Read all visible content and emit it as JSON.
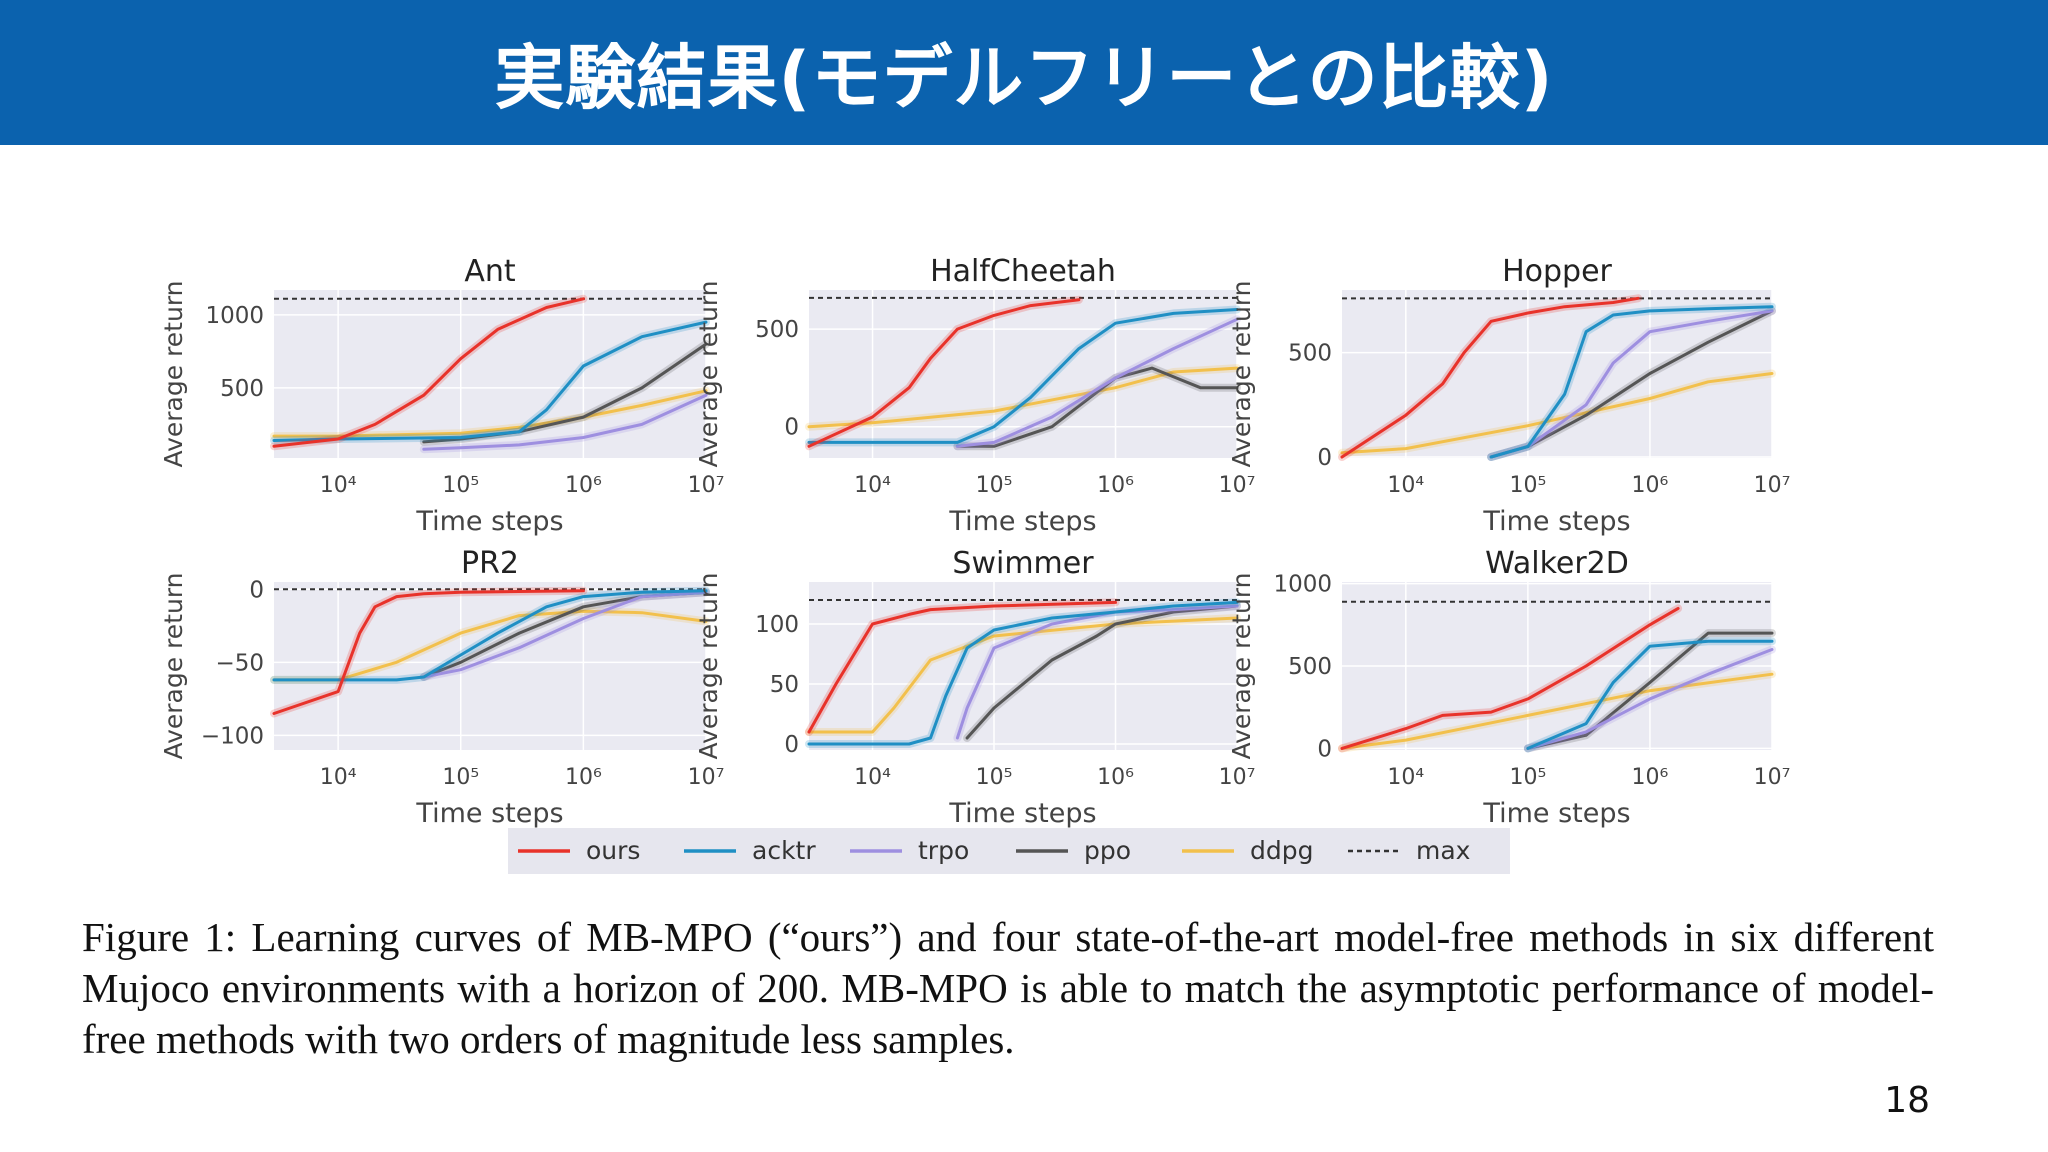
{
  "slide": {
    "title": "実験結果(モデルフリーとの比較)",
    "caption": "Figure 1: Learning curves of MB-MPO (“ours”) and four state-of-the-art model-free methods in six different Mujoco environments with a horizon of 200. MB-MPO is able to match the asymptotic performance of model-free methods with two orders of magnitude less samples.",
    "page_number": "18"
  },
  "colors": {
    "header": "#0b62ae",
    "plot_bg": "#eaeaf2",
    "grid": "#ffffff",
    "ours": "#e8322a",
    "acktr": "#1f8fc4",
    "trpo": "#9e8fe0",
    "ppo": "#555555",
    "ddpg": "#f2c04c",
    "max": "#333333"
  },
  "chart_data": [
    {
      "type": "line",
      "title": "Ant",
      "xlabel": "Time steps",
      "ylabel": "Average return",
      "xscale": "log",
      "xlim": [
        3000,
        10000000
      ],
      "ylim": [
        20,
        1170
      ],
      "xticks": [
        10000,
        100000,
        1000000,
        10000000
      ],
      "yticks": [
        500,
        1000
      ],
      "yticklabels": [
        "500",
        "1000"
      ],
      "max": 1110,
      "series": [
        {
          "name": "ours",
          "x": [
            3000,
            10000,
            20000,
            50000,
            100000,
            200000,
            500000,
            1000000
          ],
          "y": [
            100,
            150,
            250,
            450,
            700,
            900,
            1050,
            1110
          ]
        },
        {
          "name": "acktr",
          "x": [
            3000,
            10000,
            100000,
            300000,
            500000,
            1000000,
            3000000,
            10000000
          ],
          "y": [
            140,
            150,
            160,
            200,
            350,
            650,
            850,
            950
          ]
        },
        {
          "name": "trpo",
          "x": [
            50000,
            100000,
            300000,
            1000000,
            3000000,
            10000000
          ],
          "y": [
            80,
            90,
            110,
            160,
            250,
            450
          ]
        },
        {
          "name": "ppo",
          "x": [
            50000,
            100000,
            300000,
            1000000,
            3000000,
            10000000
          ],
          "y": [
            130,
            150,
            200,
            300,
            500,
            800
          ]
        },
        {
          "name": "ddpg",
          "x": [
            3000,
            10000,
            100000,
            300000,
            1000000,
            3000000,
            10000000
          ],
          "y": [
            170,
            170,
            190,
            230,
            300,
            380,
            480
          ]
        }
      ]
    },
    {
      "type": "line",
      "title": "HalfCheetah",
      "xlabel": "Time steps",
      "ylabel": "Average return",
      "xscale": "log",
      "xlim": [
        3000,
        10000000
      ],
      "ylim": [
        -160,
        700
      ],
      "xticks": [
        10000,
        100000,
        1000000,
        10000000
      ],
      "yticks": [
        0,
        500
      ],
      "yticklabels": [
        "0",
        "500"
      ],
      "max": 660,
      "series": [
        {
          "name": "ours",
          "x": [
            3000,
            10000,
            20000,
            30000,
            50000,
            100000,
            200000,
            500000
          ],
          "y": [
            -100,
            50,
            200,
            350,
            500,
            570,
            620,
            650
          ]
        },
        {
          "name": "acktr",
          "x": [
            3000,
            10000,
            50000,
            100000,
            200000,
            500000,
            1000000,
            3000000,
            10000000
          ],
          "y": [
            -80,
            -80,
            -80,
            0,
            150,
            400,
            530,
            580,
            600
          ]
        },
        {
          "name": "trpo",
          "x": [
            50000,
            100000,
            300000,
            1000000,
            3000000,
            10000000
          ],
          "y": [
            -100,
            -80,
            50,
            250,
            400,
            550
          ]
        },
        {
          "name": "ppo",
          "x": [
            50000,
            100000,
            300000,
            1000000,
            2000000,
            5000000,
            10000000
          ],
          "y": [
            -100,
            -100,
            0,
            250,
            300,
            200,
            200
          ]
        },
        {
          "name": "ddpg",
          "x": [
            3000,
            10000,
            100000,
            1000000,
            3000000,
            10000000
          ],
          "y": [
            0,
            20,
            80,
            200,
            280,
            300
          ]
        }
      ]
    },
    {
      "type": "line",
      "title": "Hopper",
      "xlabel": "Time steps",
      "ylabel": "Average return",
      "xscale": "log",
      "xlim": [
        3000,
        10000000
      ],
      "ylim": [
        -5,
        800
      ],
      "xticks": [
        10000,
        100000,
        1000000,
        10000000
      ],
      "yticks": [
        0,
        500
      ],
      "yticklabels": [
        "0",
        "500"
      ],
      "max": 760,
      "series": [
        {
          "name": "ours",
          "x": [
            3000,
            10000,
            20000,
            30000,
            50000,
            100000,
            200000,
            500000,
            800000
          ],
          "y": [
            0,
            200,
            350,
            500,
            650,
            690,
            720,
            740,
            760
          ]
        },
        {
          "name": "acktr",
          "x": [
            50000,
            100000,
            200000,
            300000,
            500000,
            1000000,
            3000000,
            10000000
          ],
          "y": [
            0,
            50,
            300,
            600,
            680,
            700,
            710,
            720
          ]
        },
        {
          "name": "trpo",
          "x": [
            50000,
            100000,
            300000,
            500000,
            1000000,
            3000000,
            10000000
          ],
          "y": [
            0,
            50,
            250,
            450,
            600,
            650,
            700
          ]
        },
        {
          "name": "ppo",
          "x": [
            50000,
            100000,
            300000,
            1000000,
            3000000,
            10000000
          ],
          "y": [
            0,
            50,
            200,
            400,
            550,
            700
          ]
        },
        {
          "name": "ddpg",
          "x": [
            3000,
            10000,
            100000,
            1000000,
            3000000,
            10000000
          ],
          "y": [
            20,
            40,
            150,
            280,
            360,
            400
          ]
        }
      ]
    },
    {
      "type": "line",
      "title": "PR2",
      "xlabel": "Time steps",
      "ylabel": "Average return",
      "xscale": "log",
      "xlim": [
        3000,
        10000000
      ],
      "ylim": [
        -110,
        5
      ],
      "xticks": [
        10000,
        100000,
        1000000,
        10000000
      ],
      "yticks": [
        -100,
        -50,
        0
      ],
      "yticklabels": [
        "−100",
        "−50",
        "0"
      ],
      "max": 0,
      "series": [
        {
          "name": "ours",
          "x": [
            3000,
            10000,
            15000,
            20000,
            30000,
            50000,
            100000,
            1000000
          ],
          "y": [
            -85,
            -70,
            -30,
            -12,
            -5,
            -3,
            -2,
            -1
          ]
        },
        {
          "name": "acktr",
          "x": [
            3000,
            10000,
            30000,
            50000,
            100000,
            200000,
            500000,
            1000000,
            3000000,
            10000000
          ],
          "y": [
            -62,
            -62,
            -62,
            -60,
            -45,
            -30,
            -12,
            -5,
            -2,
            -1
          ]
        },
        {
          "name": "trpo",
          "x": [
            50000,
            100000,
            300000,
            1000000,
            3000000,
            10000000
          ],
          "y": [
            -60,
            -55,
            -40,
            -20,
            -5,
            -2
          ]
        },
        {
          "name": "ppo",
          "x": [
            50000,
            100000,
            300000,
            1000000,
            3000000,
            10000000
          ],
          "y": [
            -60,
            -50,
            -30,
            -12,
            -5,
            -2
          ]
        },
        {
          "name": "ddpg",
          "x": [
            3000,
            10000,
            30000,
            100000,
            300000,
            1000000,
            3000000,
            10000000
          ],
          "y": [
            -62,
            -62,
            -50,
            -30,
            -18,
            -15,
            -16,
            -22
          ]
        }
      ]
    },
    {
      "type": "line",
      "title": "Swimmer",
      "xlabel": "Time steps",
      "ylabel": "Average return",
      "xscale": "log",
      "xlim": [
        3000,
        10000000
      ],
      "ylim": [
        -5,
        135
      ],
      "xticks": [
        10000,
        100000,
        1000000,
        10000000
      ],
      "yticks": [
        0,
        50,
        100
      ],
      "yticklabels": [
        "0",
        "50",
        "100"
      ],
      "max": 120,
      "series": [
        {
          "name": "ours",
          "x": [
            3000,
            5000,
            10000,
            20000,
            30000,
            100000,
            1000000
          ],
          "y": [
            10,
            50,
            100,
            108,
            112,
            115,
            118
          ]
        },
        {
          "name": "acktr",
          "x": [
            3000,
            20000,
            30000,
            40000,
            60000,
            100000,
            300000,
            1000000,
            3000000,
            10000000
          ],
          "y": [
            0,
            0,
            5,
            40,
            80,
            95,
            105,
            110,
            115,
            118
          ]
        },
        {
          "name": "trpo",
          "x": [
            50000,
            60000,
            100000,
            300000,
            1000000,
            3000000,
            10000000
          ],
          "y": [
            5,
            30,
            80,
            100,
            110,
            112,
            115
          ]
        },
        {
          "name": "ppo",
          "x": [
            60000,
            100000,
            300000,
            700000,
            1000000,
            3000000,
            10000000
          ],
          "y": [
            5,
            30,
            70,
            90,
            100,
            110,
            115
          ]
        },
        {
          "name": "ddpg",
          "x": [
            3000,
            10000,
            15000,
            30000,
            100000,
            1000000,
            10000000
          ],
          "y": [
            10,
            10,
            30,
            70,
            90,
            100,
            105
          ]
        }
      ]
    },
    {
      "type": "line",
      "title": "Walker2D",
      "xlabel": "Time steps",
      "ylabel": "Average return",
      "xscale": "log",
      "xlim": [
        3000,
        10000000
      ],
      "ylim": [
        -10,
        1010
      ],
      "xticks": [
        10000,
        100000,
        1000000,
        10000000
      ],
      "yticks": [
        0,
        500,
        1000
      ],
      "yticklabels": [
        "0",
        "500",
        "1000"
      ],
      "max": 890,
      "series": [
        {
          "name": "ours",
          "x": [
            3000,
            10000,
            20000,
            50000,
            100000,
            300000,
            1000000,
            1700000
          ],
          "y": [
            0,
            120,
            200,
            220,
            300,
            500,
            750,
            850
          ]
        },
        {
          "name": "acktr",
          "x": [
            100000,
            300000,
            500000,
            1000000,
            3000000,
            10000000
          ],
          "y": [
            0,
            150,
            400,
            620,
            650,
            650
          ]
        },
        {
          "name": "trpo",
          "x": [
            100000,
            300000,
            1000000,
            3000000,
            10000000
          ],
          "y": [
            0,
            100,
            300,
            450,
            600
          ]
        },
        {
          "name": "ppo",
          "x": [
            100000,
            300000,
            1000000,
            3000000,
            10000000
          ],
          "y": [
            0,
            80,
            400,
            700,
            700
          ]
        },
        {
          "name": "ddpg",
          "x": [
            3000,
            10000,
            100000,
            1000000,
            10000000
          ],
          "y": [
            0,
            50,
            200,
            350,
            450
          ]
        }
      ]
    }
  ],
  "legend": [
    {
      "key": "ours",
      "label": "ours"
    },
    {
      "key": "acktr",
      "label": "acktr"
    },
    {
      "key": "trpo",
      "label": "trpo"
    },
    {
      "key": "ppo",
      "label": "ppo"
    },
    {
      "key": "ddpg",
      "label": "ddpg"
    },
    {
      "key": "max",
      "label": "max"
    }
  ]
}
